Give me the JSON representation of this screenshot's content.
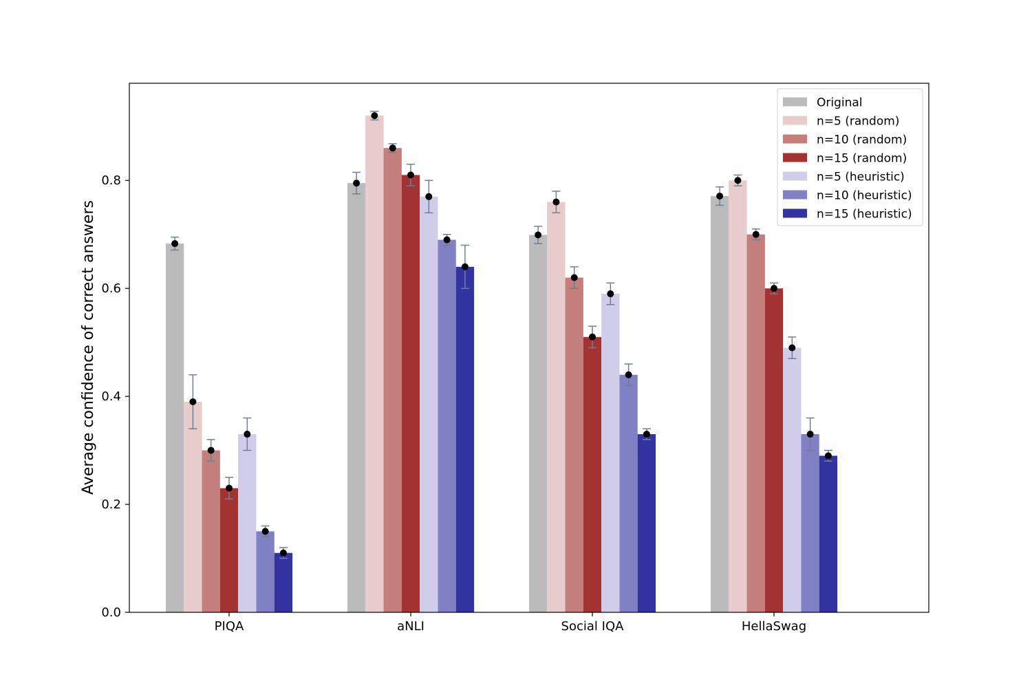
{
  "chart_data": {
    "type": "bar",
    "title": "",
    "xlabel": "",
    "ylabel": "Average confidence of correct answers",
    "ylim": [
      0,
      0.98
    ],
    "yticks": [
      0.0,
      0.2,
      0.4,
      0.6,
      0.8
    ],
    "ytick_labels": [
      "0.0",
      "0.2",
      "0.4",
      "0.6",
      "0.8"
    ],
    "categories": [
      "PIQA",
      "aNLI",
      "Social IQA",
      "HellaSwag"
    ],
    "legend_position": "top-right",
    "grid": false,
    "error_bar_color": "#6f7f94",
    "point_color": "#000000",
    "series": [
      {
        "name": "Original",
        "color": "#bbbbbb",
        "values": [
          0.683,
          0.795,
          0.699,
          0.771
        ],
        "errors": [
          0.012,
          0.02,
          0.016,
          0.017
        ]
      },
      {
        "name": "n=5 (random)",
        "color": "#e7cccb",
        "values": [
          0.39,
          0.92,
          0.76,
          0.8
        ],
        "errors": [
          0.05,
          0.008,
          0.02,
          0.01
        ]
      },
      {
        "name": "n=10 (random)",
        "color": "#c47e7c",
        "values": [
          0.3,
          0.86,
          0.62,
          0.7
        ],
        "errors": [
          0.02,
          0.008,
          0.02,
          0.01
        ]
      },
      {
        "name": "n=15 (random)",
        "color": "#a33232",
        "values": [
          0.23,
          0.81,
          0.51,
          0.6
        ],
        "errors": [
          0.02,
          0.02,
          0.02,
          0.01
        ]
      },
      {
        "name": "n=5 (heuristic)",
        "color": "#cfcde9",
        "values": [
          0.33,
          0.77,
          0.59,
          0.49
        ],
        "errors": [
          0.03,
          0.03,
          0.02,
          0.02
        ]
      },
      {
        "name": "n=10 (heuristic)",
        "color": "#8080c4",
        "values": [
          0.15,
          0.69,
          0.44,
          0.33
        ],
        "errors": [
          0.01,
          0.01,
          0.02,
          0.03
        ]
      },
      {
        "name": "n=15 (heuristic)",
        "color": "#3333a1",
        "values": [
          0.11,
          0.64,
          0.33,
          0.29
        ],
        "errors": [
          0.01,
          0.04,
          0.01,
          0.01
        ]
      }
    ]
  }
}
